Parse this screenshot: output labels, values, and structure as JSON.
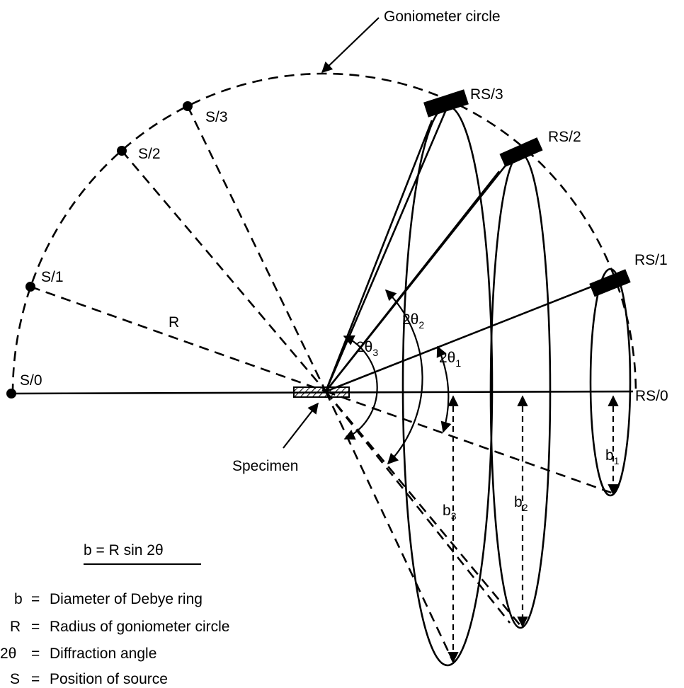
{
  "labels": {
    "goniometer_circle": "Goniometer circle",
    "specimen": "Specimen",
    "radius": "R",
    "sources": [
      "S/0",
      "S/1",
      "S/2",
      "S/3"
    ],
    "receivers": [
      "RS/0",
      "RS/1",
      "RS/2",
      "RS/3"
    ],
    "angles": [
      {
        "main": "2θ",
        "sub": "1"
      },
      {
        "main": "2θ",
        "sub": "2"
      },
      {
        "main": "2θ",
        "sub": "3"
      }
    ],
    "diameters": [
      {
        "main": "b",
        "sub": "1"
      },
      {
        "main": "b",
        "sub": "2"
      },
      {
        "main": "b",
        "sub": "3"
      }
    ]
  },
  "formula": "b = R sin 2θ",
  "legend": [
    {
      "symbol": "b",
      "eq": "=",
      "text": "Diameter of Debye ring"
    },
    {
      "symbol": "R",
      "eq": "=",
      "text": "Radius of goniometer circle"
    },
    {
      "symbol": "2θ",
      "eq": "=",
      "text": "Diffraction angle"
    },
    {
      "symbol": "S",
      "eq": "=",
      "text": "Position of source"
    }
  ]
}
